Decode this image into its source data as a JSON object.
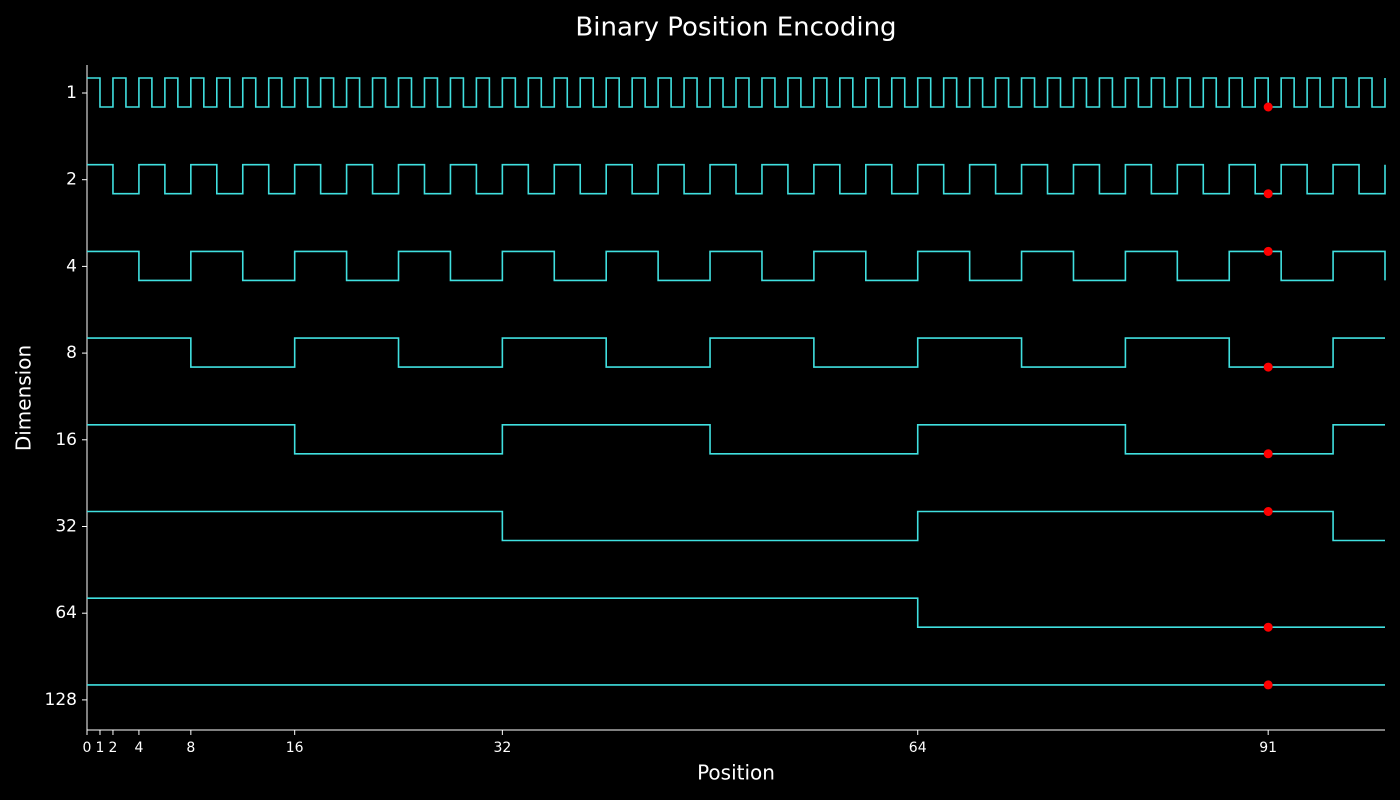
{
  "chart_data": {
    "type": "step",
    "title": "Binary Position Encoding",
    "x_label": "Position",
    "y_label": "Dimension",
    "xlim": [
      0,
      100
    ],
    "xticks": [
      0,
      1,
      2,
      4,
      8,
      16,
      32,
      64,
      91
    ],
    "x": [
      0,
      1,
      2,
      3,
      4,
      5,
      6,
      7,
      8,
      9,
      10,
      11,
      12,
      13,
      14,
      15,
      16,
      17,
      18,
      19,
      20,
      21,
      22,
      23,
      24,
      25,
      26,
      27,
      28,
      29,
      30,
      31,
      32,
      33,
      34,
      35,
      36,
      37,
      38,
      39,
      40,
      41,
      42,
      43,
      44,
      45,
      46,
      47,
      48,
      49,
      50,
      51,
      52,
      53,
      54,
      55,
      56,
      57,
      58,
      59,
      60,
      61,
      62,
      63,
      64,
      65,
      66,
      67,
      68,
      69,
      70,
      71,
      72,
      73,
      74,
      75,
      76,
      77,
      78,
      79,
      80,
      81,
      82,
      83,
      84,
      85,
      86,
      87,
      88,
      89,
      90,
      91,
      92,
      93,
      94,
      95,
      96,
      97,
      98,
      99,
      100
    ],
    "series": [
      {
        "name": "1",
        "color": "#40e0e0",
        "values": [
          0,
          1,
          0,
          1,
          0,
          1,
          0,
          1,
          0,
          1,
          0,
          1,
          0,
          1,
          0,
          1,
          0,
          1,
          0,
          1,
          0,
          1,
          0,
          1,
          0,
          1,
          0,
          1,
          0,
          1,
          0,
          1,
          0,
          1,
          0,
          1,
          0,
          1,
          0,
          1,
          0,
          1,
          0,
          1,
          0,
          1,
          0,
          1,
          0,
          1,
          0,
          1,
          0,
          1,
          0,
          1,
          0,
          1,
          0,
          1,
          0,
          1,
          0,
          1,
          0,
          1,
          0,
          1,
          0,
          1,
          0,
          1,
          0,
          1,
          0,
          1,
          0,
          1,
          0,
          1,
          0,
          1,
          0,
          1,
          0,
          1,
          0,
          1,
          0,
          1,
          0,
          1,
          0,
          1,
          0,
          1,
          0,
          1,
          0,
          1,
          0
        ]
      },
      {
        "name": "2",
        "color": "#40e0e0",
        "values": [
          0,
          0,
          1,
          1,
          0,
          0,
          1,
          1,
          0,
          0,
          1,
          1,
          0,
          0,
          1,
          1,
          0,
          0,
          1,
          1,
          0,
          0,
          1,
          1,
          0,
          0,
          1,
          1,
          0,
          0,
          1,
          1,
          0,
          0,
          1,
          1,
          0,
          0,
          1,
          1,
          0,
          0,
          1,
          1,
          0,
          0,
          1,
          1,
          0,
          0,
          1,
          1,
          0,
          0,
          1,
          1,
          0,
          0,
          1,
          1,
          0,
          0,
          1,
          1,
          0,
          0,
          1,
          1,
          0,
          0,
          1,
          1,
          0,
          0,
          1,
          1,
          0,
          0,
          1,
          1,
          0,
          0,
          1,
          1,
          0,
          0,
          1,
          1,
          0,
          0,
          1,
          1,
          0,
          0,
          1,
          1,
          0,
          0,
          1,
          1,
          0
        ]
      },
      {
        "name": "4",
        "color": "#40e0e0",
        "values": [
          0,
          0,
          0,
          0,
          1,
          1,
          1,
          1,
          0,
          0,
          0,
          0,
          1,
          1,
          1,
          1,
          0,
          0,
          0,
          0,
          1,
          1,
          1,
          1,
          0,
          0,
          0,
          0,
          1,
          1,
          1,
          1,
          0,
          0,
          0,
          0,
          1,
          1,
          1,
          1,
          0,
          0,
          0,
          0,
          1,
          1,
          1,
          1,
          0,
          0,
          0,
          0,
          1,
          1,
          1,
          1,
          0,
          0,
          0,
          0,
          1,
          1,
          1,
          1,
          0,
          0,
          0,
          0,
          1,
          1,
          1,
          1,
          0,
          0,
          0,
          0,
          1,
          1,
          1,
          1,
          0,
          0,
          0,
          0,
          1,
          1,
          1,
          1,
          0,
          0,
          0,
          0,
          1,
          1,
          1,
          1,
          0,
          0,
          0,
          0,
          1
        ]
      },
      {
        "name": "8",
        "color": "#40e0e0",
        "values": [
          0,
          0,
          0,
          0,
          0,
          0,
          0,
          0,
          1,
          1,
          1,
          1,
          1,
          1,
          1,
          1,
          0,
          0,
          0,
          0,
          0,
          0,
          0,
          0,
          1,
          1,
          1,
          1,
          1,
          1,
          1,
          1,
          0,
          0,
          0,
          0,
          0,
          0,
          0,
          0,
          1,
          1,
          1,
          1,
          1,
          1,
          1,
          1,
          0,
          0,
          0,
          0,
          0,
          0,
          0,
          0,
          1,
          1,
          1,
          1,
          1,
          1,
          1,
          1,
          0,
          0,
          0,
          0,
          0,
          0,
          0,
          0,
          1,
          1,
          1,
          1,
          1,
          1,
          1,
          1,
          0,
          0,
          0,
          0,
          0,
          0,
          0,
          0,
          1,
          1,
          1,
          1,
          1,
          1,
          1,
          1,
          0,
          0,
          0,
          0,
          0
        ]
      },
      {
        "name": "16",
        "color": "#40e0e0",
        "values": [
          0,
          0,
          0,
          0,
          0,
          0,
          0,
          0,
          0,
          0,
          0,
          0,
          0,
          0,
          0,
          0,
          1,
          1,
          1,
          1,
          1,
          1,
          1,
          1,
          1,
          1,
          1,
          1,
          1,
          1,
          1,
          1,
          0,
          0,
          0,
          0,
          0,
          0,
          0,
          0,
          0,
          0,
          0,
          0,
          0,
          0,
          0,
          0,
          1,
          1,
          1,
          1,
          1,
          1,
          1,
          1,
          1,
          1,
          1,
          1,
          1,
          1,
          1,
          1,
          0,
          0,
          0,
          0,
          0,
          0,
          0,
          0,
          0,
          0,
          0,
          0,
          0,
          0,
          0,
          0,
          1,
          1,
          1,
          1,
          1,
          1,
          1,
          1,
          1,
          1,
          1,
          1,
          1,
          1,
          1,
          1,
          0,
          0,
          0,
          0,
          0
        ]
      },
      {
        "name": "32",
        "color": "#40e0e0",
        "values": [
          0,
          0,
          0,
          0,
          0,
          0,
          0,
          0,
          0,
          0,
          0,
          0,
          0,
          0,
          0,
          0,
          0,
          0,
          0,
          0,
          0,
          0,
          0,
          0,
          0,
          0,
          0,
          0,
          0,
          0,
          0,
          0,
          1,
          1,
          1,
          1,
          1,
          1,
          1,
          1,
          1,
          1,
          1,
          1,
          1,
          1,
          1,
          1,
          1,
          1,
          1,
          1,
          1,
          1,
          1,
          1,
          1,
          1,
          1,
          1,
          1,
          1,
          1,
          1,
          0,
          0,
          0,
          0,
          0,
          0,
          0,
          0,
          0,
          0,
          0,
          0,
          0,
          0,
          0,
          0,
          0,
          0,
          0,
          0,
          0,
          0,
          0,
          0,
          0,
          0,
          0,
          0,
          0,
          0,
          0,
          0,
          1,
          1,
          1,
          1,
          1
        ]
      },
      {
        "name": "64",
        "color": "#40e0e0",
        "values": [
          0,
          0,
          0,
          0,
          0,
          0,
          0,
          0,
          0,
          0,
          0,
          0,
          0,
          0,
          0,
          0,
          0,
          0,
          0,
          0,
          0,
          0,
          0,
          0,
          0,
          0,
          0,
          0,
          0,
          0,
          0,
          0,
          0,
          0,
          0,
          0,
          0,
          0,
          0,
          0,
          0,
          0,
          0,
          0,
          0,
          0,
          0,
          0,
          0,
          0,
          0,
          0,
          0,
          0,
          0,
          0,
          0,
          0,
          0,
          0,
          0,
          0,
          0,
          0,
          1,
          1,
          1,
          1,
          1,
          1,
          1,
          1,
          1,
          1,
          1,
          1,
          1,
          1,
          1,
          1,
          1,
          1,
          1,
          1,
          1,
          1,
          1,
          1,
          1,
          1,
          1,
          1,
          1,
          1,
          1,
          1,
          1,
          1,
          1,
          1,
          1
        ]
      },
      {
        "name": "128",
        "color": "#40e0e0",
        "values": [
          0,
          0,
          0,
          0,
          0,
          0,
          0,
          0,
          0,
          0,
          0,
          0,
          0,
          0,
          0,
          0,
          0,
          0,
          0,
          0,
          0,
          0,
          0,
          0,
          0,
          0,
          0,
          0,
          0,
          0,
          0,
          0,
          0,
          0,
          0,
          0,
          0,
          0,
          0,
          0,
          0,
          0,
          0,
          0,
          0,
          0,
          0,
          0,
          0,
          0,
          0,
          0,
          0,
          0,
          0,
          0,
          0,
          0,
          0,
          0,
          0,
          0,
          0,
          0,
          0,
          0,
          0,
          0,
          0,
          0,
          0,
          0,
          0,
          0,
          0,
          0,
          0,
          0,
          0,
          0,
          0,
          0,
          0,
          0,
          0,
          0,
          0,
          0,
          0,
          0,
          0,
          0,
          0,
          0,
          0,
          0,
          0,
          0,
          0,
          0,
          0
        ]
      }
    ],
    "highlight": {
      "x": 91,
      "color": "#ff0000",
      "values": [
        1,
        1,
        0,
        1,
        1,
        0,
        1,
        0
      ]
    }
  }
}
